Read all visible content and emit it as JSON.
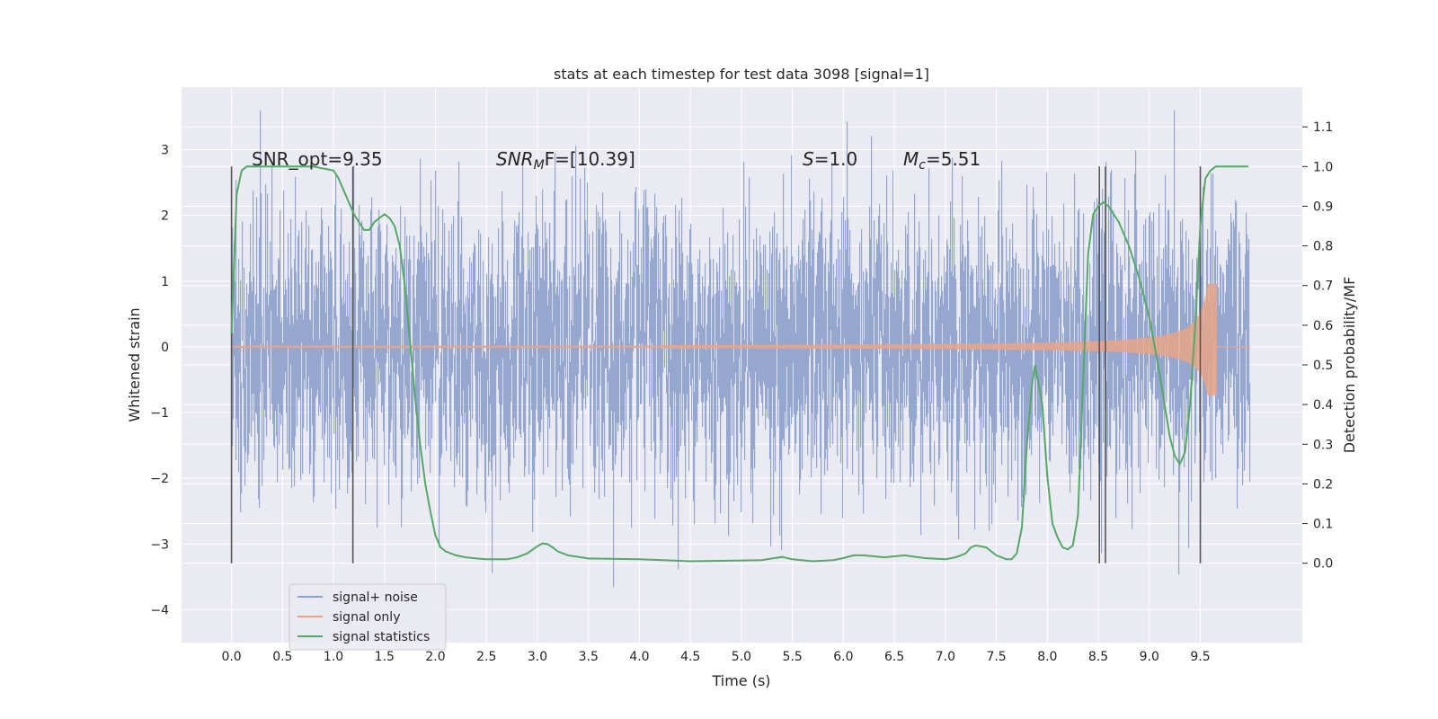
{
  "chart_data": {
    "type": "line",
    "title": "stats at each timestep for test data 3098 [signal=1]",
    "xlabel": "Time (s)",
    "ylabel_left": "Whitened strain",
    "ylabel_right": "Detection probability/MF",
    "xlim": [
      -0.49,
      10.5
    ],
    "ylim_left": [
      -4.5,
      3.95
    ],
    "ylim_right": [
      -0.2,
      1.2
    ],
    "x_ticks": [
      "0.0",
      "0.5",
      "1.0",
      "1.5",
      "2.0",
      "2.5",
      "3.0",
      "3.5",
      "4.0",
      "4.5",
      "5.0",
      "5.5",
      "6.0",
      "6.5",
      "7.0",
      "7.5",
      "8.0",
      "8.5",
      "9.0",
      "9.5"
    ],
    "y_ticks_left": [
      "−4",
      "−3",
      "−2",
      "−1",
      "0",
      "1",
      "2",
      "3"
    ],
    "y_ticks_right": [
      "0.0",
      "0.1",
      "0.2",
      "0.3",
      "0.4",
      "0.5",
      "0.6",
      "0.7",
      "0.8",
      "0.9",
      "1.0",
      "1.1"
    ],
    "annotations": {
      "snr_opt": "SNR_opt=9.35",
      "snr_mf_main": "SNR",
      "snr_mf_sub": "M",
      "snr_mf_rest": "F=[10.39]",
      "s_label": "S",
      "s_value": "=1.0",
      "mc_main": "M",
      "mc_sub": "c",
      "mc_value": "=5.51"
    },
    "vertical_lines_x": [
      0.0,
      1.19,
      8.51,
      8.57,
      9.5
    ],
    "legend": {
      "placement": "lower-left",
      "entries": [
        "signal+ noise",
        "signal only",
        "signal statistics"
      ]
    },
    "colors": {
      "noise": "#8da0cb",
      "signal": "#e7a48a",
      "stats": "#55a868",
      "vlines": "#555555",
      "background": "#eaeaf2",
      "grid": "#ffffff"
    },
    "series": [
      {
        "name": "signal statistics",
        "axis": "right",
        "x": [
          0.0,
          0.05,
          0.1,
          0.15,
          0.2,
          0.3,
          0.5,
          0.8,
          1.0,
          1.05,
          1.1,
          1.15,
          1.2,
          1.25,
          1.3,
          1.35,
          1.4,
          1.45,
          1.5,
          1.55,
          1.6,
          1.65,
          1.7,
          1.75,
          1.8,
          1.85,
          1.9,
          1.95,
          2.0,
          2.05,
          2.1,
          2.2,
          2.3,
          2.4,
          2.5,
          2.6,
          2.7,
          2.8,
          2.9,
          3.0,
          3.05,
          3.1,
          3.15,
          3.2,
          3.3,
          3.5,
          4.0,
          4.5,
          5.0,
          5.2,
          5.3,
          5.4,
          5.5,
          5.7,
          5.9,
          6.0,
          6.1,
          6.2,
          6.4,
          6.6,
          6.8,
          7.0,
          7.1,
          7.2,
          7.25,
          7.3,
          7.4,
          7.5,
          7.6,
          7.65,
          7.7,
          7.75,
          7.8,
          7.85,
          7.88,
          7.95,
          8.0,
          8.05,
          8.1,
          8.15,
          8.2,
          8.25,
          8.3,
          8.35,
          8.4,
          8.45,
          8.5,
          8.55,
          8.6,
          8.7,
          8.8,
          8.9,
          9.0,
          9.1,
          9.15,
          9.2,
          9.25,
          9.3,
          9.35,
          9.4,
          9.45,
          9.5,
          9.55,
          9.6,
          9.65,
          9.7,
          9.8,
          9.97
        ],
        "values": [
          0.58,
          0.93,
          0.99,
          1.0,
          1.0,
          1.0,
          1.0,
          1.0,
          0.99,
          0.97,
          0.94,
          0.91,
          0.88,
          0.86,
          0.84,
          0.84,
          0.86,
          0.87,
          0.88,
          0.87,
          0.85,
          0.8,
          0.7,
          0.56,
          0.42,
          0.3,
          0.2,
          0.13,
          0.07,
          0.04,
          0.03,
          0.02,
          0.015,
          0.012,
          0.01,
          0.01,
          0.01,
          0.015,
          0.025,
          0.043,
          0.05,
          0.048,
          0.04,
          0.03,
          0.02,
          0.012,
          0.01,
          0.005,
          0.007,
          0.008,
          0.012,
          0.016,
          0.01,
          0.005,
          0.008,
          0.013,
          0.02,
          0.02,
          0.015,
          0.02,
          0.013,
          0.01,
          0.015,
          0.025,
          0.04,
          0.045,
          0.04,
          0.02,
          0.01,
          0.01,
          0.025,
          0.09,
          0.3,
          0.45,
          0.5,
          0.4,
          0.22,
          0.1,
          0.065,
          0.04,
          0.035,
          0.045,
          0.12,
          0.45,
          0.78,
          0.88,
          0.9,
          0.91,
          0.9,
          0.86,
          0.8,
          0.72,
          0.62,
          0.48,
          0.4,
          0.32,
          0.27,
          0.25,
          0.28,
          0.4,
          0.6,
          0.85,
          0.97,
          0.99,
          1.0,
          1.0,
          1.0,
          1.0
        ]
      }
    ]
  }
}
